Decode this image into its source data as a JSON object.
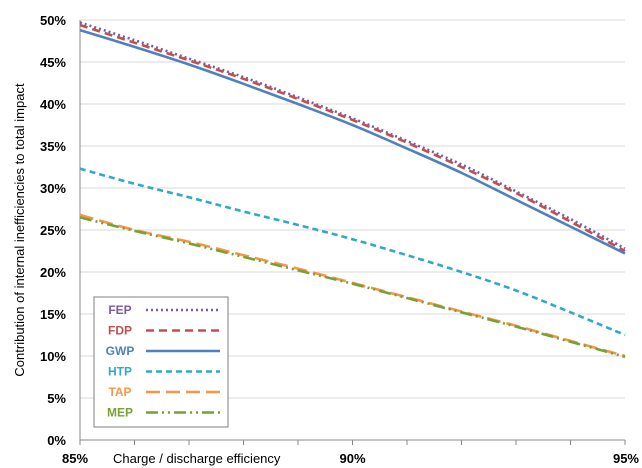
{
  "chart_data": {
    "type": "line",
    "xlabel": "Charge / discharge efficiency",
    "ylabel": "Contribution of internal  inefficiencies to total impact",
    "xlim": [
      85,
      95
    ],
    "ylim": [
      0,
      50
    ],
    "x_ticks": [
      {
        "value": 85,
        "label": "85%"
      },
      {
        "value": 90,
        "label": "90%"
      },
      {
        "value": 95,
        "label": "95%"
      }
    ],
    "y_ticks": [
      {
        "value": 0,
        "label": "0%"
      },
      {
        "value": 5,
        "label": "5%"
      },
      {
        "value": 10,
        "label": "10%"
      },
      {
        "value": 15,
        "label": "15%"
      },
      {
        "value": 20,
        "label": "20%"
      },
      {
        "value": 25,
        "label": "25%"
      },
      {
        "value": 30,
        "label": "30%"
      },
      {
        "value": 35,
        "label": "35%"
      },
      {
        "value": 40,
        "label": "40%"
      },
      {
        "value": 45,
        "label": "45%"
      },
      {
        "value": 50,
        "label": "50%"
      }
    ],
    "grid": "horizontal",
    "legend_position": "bottom-left",
    "x": [
      85,
      86,
      87,
      88,
      89,
      90,
      91,
      92,
      93,
      94,
      95
    ],
    "series": [
      {
        "name": "FEP",
        "color": "#7b59a6",
        "dash": "2 3",
        "values": [
          49.7,
          47.6,
          45.4,
          43.2,
          40.8,
          38.3,
          35.6,
          32.8,
          29.6,
          26.3,
          22.8
        ]
      },
      {
        "name": "FDP",
        "color": "#c0504d",
        "dash": "8 5",
        "values": [
          49.4,
          47.3,
          45.2,
          43.0,
          40.6,
          38.1,
          35.4,
          32.5,
          29.4,
          26.0,
          22.5
        ]
      },
      {
        "name": "GWP",
        "color": "#4f81bd",
        "dash": "",
        "values": [
          48.8,
          46.8,
          44.7,
          42.4,
          40.0,
          37.5,
          34.7,
          31.8,
          28.6,
          25.4,
          22.2
        ]
      },
      {
        "name": "HTP",
        "color": "#31a9c5",
        "dash": "6 4",
        "values": [
          32.3,
          30.5,
          28.9,
          27.2,
          25.6,
          23.9,
          22.0,
          20.0,
          17.8,
          15.2,
          12.5
        ]
      },
      {
        "name": "TAP",
        "color": "#f79646",
        "dash": "14 6",
        "values": [
          26.8,
          25.0,
          23.6,
          22.0,
          20.4,
          18.7,
          17.0,
          15.3,
          13.6,
          11.8,
          10.0
        ]
      },
      {
        "name": "MEP",
        "color": "#77a037",
        "dash": "12 4 2 4 2 4",
        "values": [
          26.5,
          24.9,
          23.4,
          21.8,
          20.2,
          18.6,
          16.9,
          15.2,
          13.5,
          11.7,
          9.9
        ]
      }
    ]
  }
}
